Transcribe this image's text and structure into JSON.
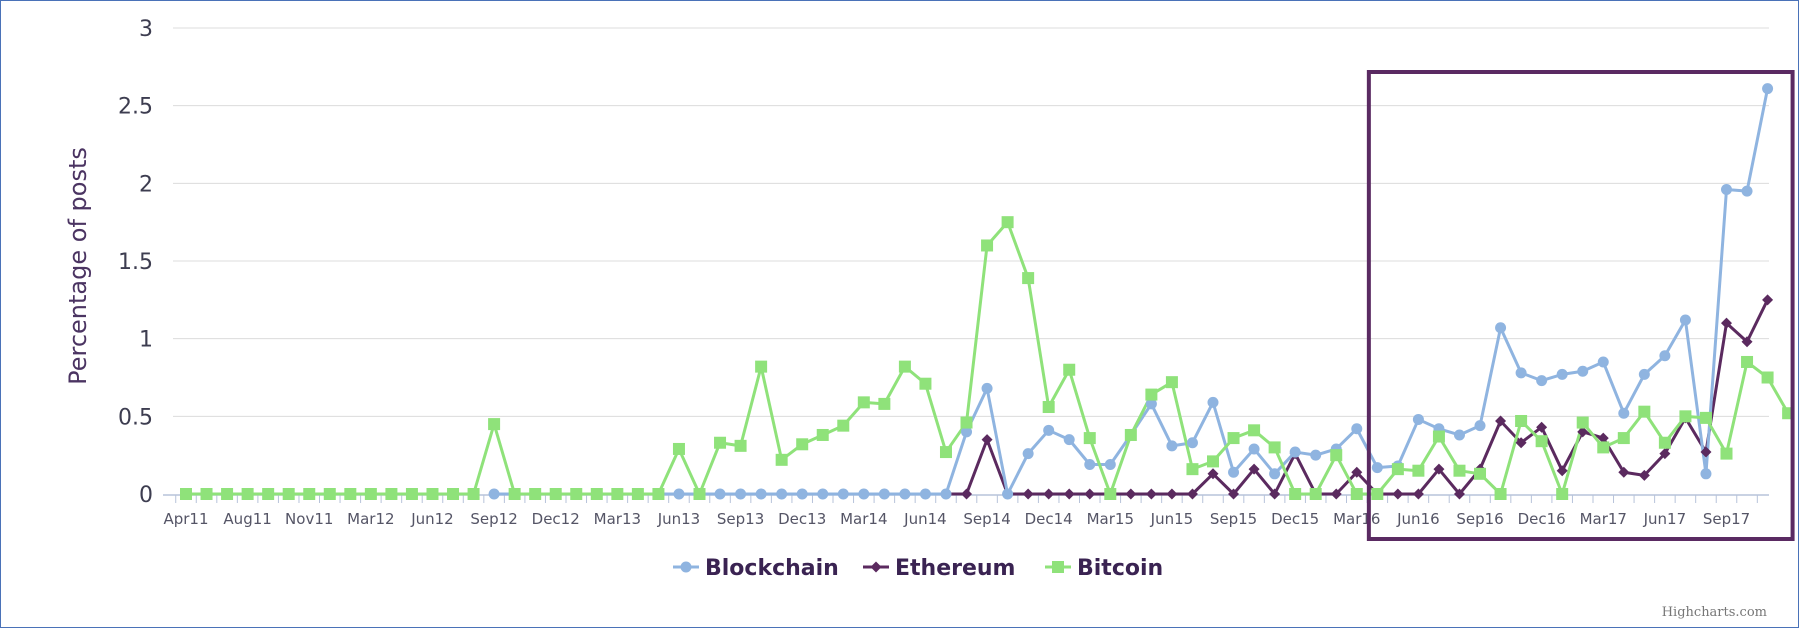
{
  "chart_data": {
    "type": "line",
    "ylabel": "Percentage of posts",
    "xlabel": "",
    "ylim": [
      0,
      3
    ],
    "yticks": [
      "0",
      "0.5",
      "1",
      "1.5",
      "2",
      "2.5",
      "3"
    ],
    "ytick_values": [
      0,
      0.5,
      1,
      1.5,
      2,
      2.5,
      3
    ],
    "grid": true,
    "legend_position": "bottom-center",
    "xtick_labels": [
      {
        "label": "Apr11",
        "index": 0
      },
      {
        "label": "Aug11",
        "index": 3
      },
      {
        "label": "Nov11",
        "index": 6
      },
      {
        "label": "Mar12",
        "index": 9
      },
      {
        "label": "Jun12",
        "index": 12
      },
      {
        "label": "Sep12",
        "index": 15
      },
      {
        "label": "Dec12",
        "index": 18
      },
      {
        "label": "Mar13",
        "index": 21
      },
      {
        "label": "Jun13",
        "index": 24
      },
      {
        "label": "Sep13",
        "index": 27
      },
      {
        "label": "Dec13",
        "index": 30
      },
      {
        "label": "Mar14",
        "index": 33
      },
      {
        "label": "Jun14",
        "index": 36
      },
      {
        "label": "Sep14",
        "index": 39
      },
      {
        "label": "Dec14",
        "index": 42
      },
      {
        "label": "Mar15",
        "index": 45
      },
      {
        "label": "Jun15",
        "index": 48
      },
      {
        "label": "Sep15",
        "index": 51
      },
      {
        "label": "Dec15",
        "index": 54
      },
      {
        "label": "Mar16",
        "index": 57
      },
      {
        "label": "Jun16",
        "index": 60
      },
      {
        "label": "Sep16",
        "index": 63
      },
      {
        "label": "Dec16",
        "index": 66
      },
      {
        "label": "Mar17",
        "index": 69
      },
      {
        "label": "Jun17",
        "index": 72
      },
      {
        "label": "Sep17",
        "index": 75
      }
    ],
    "point_count": 78,
    "series": [
      {
        "name": "Blockchain",
        "color": "#8fb4e0",
        "marker": "circle",
        "start_index": 15,
        "values": [
          0,
          0,
          0,
          0,
          0,
          0,
          0,
          0,
          0,
          0,
          0,
          0,
          0,
          0,
          0,
          0,
          0,
          0,
          0,
          0,
          0,
          0,
          0,
          0.4,
          0.68,
          0,
          0.26,
          0.41,
          0.35,
          0.19,
          0.19,
          0.38,
          0.58,
          0.31,
          0.33,
          0.59,
          0.14,
          0.29,
          0.13,
          0.27,
          0.25,
          0.29,
          0.42,
          0.17,
          0.18,
          0.48,
          0.42,
          0.38,
          0.44,
          1.07,
          0.78,
          0.73,
          0.77,
          0.79,
          0.85,
          0.52,
          0.77,
          0.89,
          1.12,
          0.13,
          1.96,
          1.95,
          2.61
        ]
      },
      {
        "name": "Ethereum",
        "color": "#5b2a5f",
        "marker": "diamond",
        "start_index": 15,
        "values": [
          0,
          0,
          0,
          0,
          0,
          0,
          0,
          0,
          0,
          0,
          0,
          0,
          0,
          0,
          0,
          0,
          0,
          0,
          0,
          0,
          0,
          0,
          0,
          0,
          0.35,
          0,
          0,
          0,
          0,
          0,
          0,
          0,
          0,
          0,
          0,
          0.13,
          0,
          0.16,
          0,
          0.26,
          0,
          0,
          0.14,
          0,
          0,
          0,
          0.16,
          0,
          0.16,
          0.47,
          0.33,
          0.43,
          0.15,
          0.4,
          0.36,
          0.14,
          0.12,
          0.26,
          0.49,
          0.27,
          1.1,
          0.98,
          1.25
        ]
      },
      {
        "name": "Bitcoin",
        "color": "#8fe27a",
        "marker": "square",
        "start_index": 0,
        "values": [
          0,
          0,
          0,
          0,
          0,
          0,
          0,
          0,
          0,
          0,
          0,
          0,
          0,
          0,
          0,
          0.45,
          0,
          0,
          0,
          0,
          0,
          0,
          0,
          0,
          0.29,
          0,
          0.33,
          0.31,
          0.82,
          0.22,
          0.32,
          0.38,
          0.44,
          0.59,
          0.58,
          0.82,
          0.71,
          0.27,
          0.46,
          1.6,
          1.75,
          1.39,
          0.56,
          0.8,
          0.36,
          0,
          0.38,
          0.64,
          0.72,
          0.16,
          0.21,
          0.36,
          0.41,
          0.3,
          0,
          0,
          0.25,
          0,
          0,
          0.16,
          0.15,
          0.37,
          0.15,
          0.13,
          0,
          0.47,
          0.34,
          0,
          0.46,
          0.3,
          0.36,
          0.53,
          0.33,
          0.5,
          0.49,
          0.26,
          0.85,
          0.75,
          0.52
        ]
      }
    ],
    "highlight_box": {
      "from_index": 59,
      "to_index": 77,
      "color": "#5a2a62"
    },
    "credit": "Highcharts.com"
  }
}
